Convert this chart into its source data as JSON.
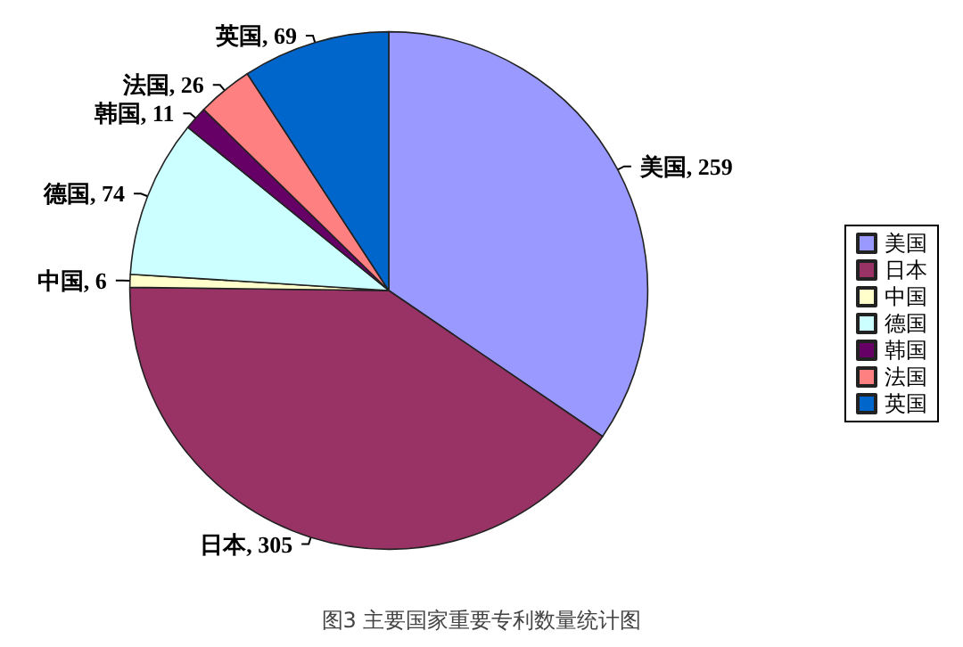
{
  "chart_data": {
    "type": "pie",
    "title": "图3 主要国家重要专利数量统计图",
    "categories": [
      "美国",
      "日本",
      "中国",
      "德国",
      "韩国",
      "法国",
      "英国"
    ],
    "values": [
      259,
      305,
      6,
      74,
      11,
      26,
      69
    ],
    "value_labels": [
      ", 259",
      ", 305",
      ", 6",
      ", 74",
      ", 11",
      ", 26",
      ", 69"
    ],
    "colors": [
      "#9999ff",
      "#993366",
      "#ffffcc",
      "#ccffff",
      "#660066",
      "#ff8080",
      "#0066cc"
    ],
    "legend": "right"
  }
}
